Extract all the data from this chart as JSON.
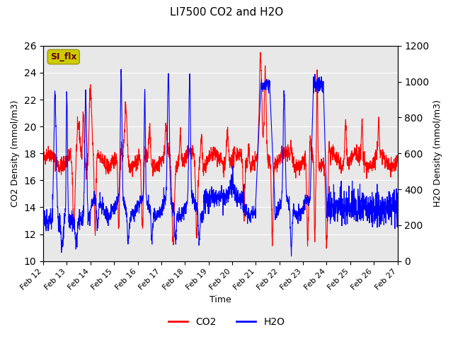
{
  "title": "LI7500 CO2 and H2O",
  "xlabel": "Time",
  "ylabel_left": "CO2 Density (mmol/m3)",
  "ylabel_right": "H2O Density (mmol/m3)",
  "ylim_left": [
    10,
    26
  ],
  "ylim_right": [
    0,
    1200
  ],
  "yticks_left": [
    10,
    12,
    14,
    16,
    18,
    20,
    22,
    24,
    26
  ],
  "yticks_right": [
    0,
    200,
    400,
    600,
    800,
    1000,
    1200
  ],
  "xtick_labels": [
    "Feb 12",
    "Feb 13",
    "Feb 14",
    "Feb 15",
    "Feb 16",
    "Feb 17",
    "Feb 18",
    "Feb 19",
    "Feb 20",
    "Feb 21",
    "Feb 22",
    "Feb 23",
    "Feb 24",
    "Feb 25",
    "Feb 26",
    "Feb 27"
  ],
  "legend_labels": [
    "CO2",
    "H2O"
  ],
  "co2_color": "#FF0000",
  "h2o_color": "#0000FF",
  "background_color": "#E8E8E8",
  "annotation_text": "SI_flx",
  "annotation_bg": "#CCCC00",
  "annotation_fg": "#660000"
}
